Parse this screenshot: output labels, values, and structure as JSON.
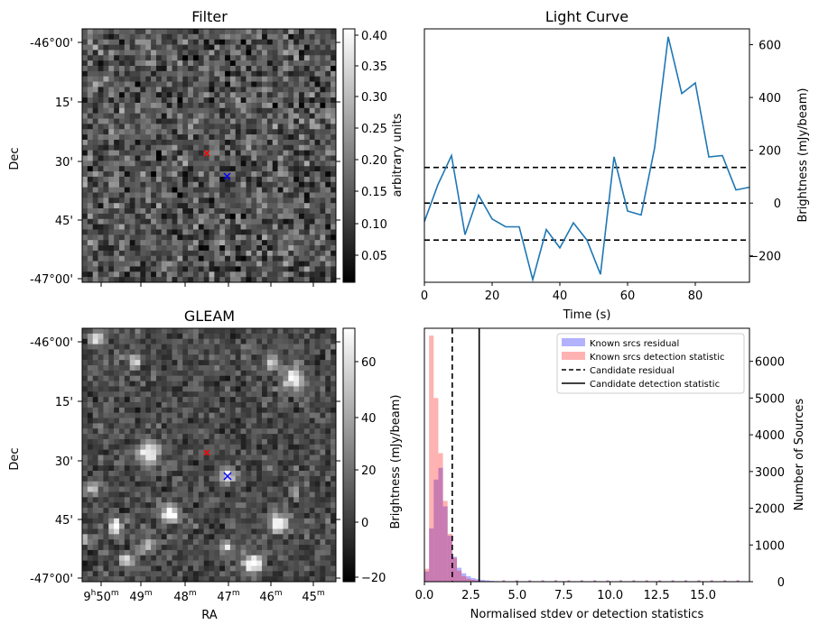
{
  "panels": {
    "filter": {
      "title": "Filter",
      "ylabel": "Dec",
      "yticks": [
        "-46°00'",
        "15'",
        "30'",
        "45'",
        "-47°00'"
      ],
      "colorbar": {
        "label": "arbitrary units",
        "ticks": [
          "0.40",
          "0.35",
          "0.30",
          "0.25",
          "0.20",
          "0.15",
          "0.10",
          "0.05"
        ]
      },
      "markers": {
        "red": "#ff0000",
        "blue": "#0000ff"
      }
    },
    "gleam": {
      "title": "GLEAM",
      "ylabel": "Dec",
      "xlabel": "RA",
      "yticks": [
        "-46°00'",
        "15'",
        "30'",
        "45'",
        "-47°00'"
      ],
      "xticks": [
        "9h50m",
        "49m",
        "48m",
        "47m",
        "46m",
        "45m"
      ],
      "colorbar": {
        "label": "Brightness (mJy/beam)",
        "ticks": [
          "60",
          "40",
          "20",
          "0",
          "−20"
        ]
      }
    }
  },
  "chart_data": [
    {
      "type": "line",
      "title": "Light Curve",
      "xlabel": "Time (s)",
      "ylabel": "Brightness (mJy/beam)",
      "xlim": [
        0,
        96
      ],
      "ylim": [
        -300,
        660
      ],
      "xticks": [
        0,
        20,
        40,
        60,
        80
      ],
      "yticks": [
        -200,
        0,
        200,
        400,
        600
      ],
      "color": "#1f77b4",
      "x": [
        0,
        4,
        8,
        12,
        16,
        20,
        24,
        28,
        32,
        36,
        40,
        44,
        48,
        52,
        56,
        60,
        64,
        68,
        72,
        76,
        80,
        84,
        88,
        92,
        96
      ],
      "y": [
        -70,
        70,
        180,
        -120,
        30,
        -60,
        -90,
        -90,
        -290,
        -100,
        -170,
        -75,
        -140,
        -270,
        175,
        -30,
        -45,
        210,
        630,
        415,
        455,
        175,
        180,
        50,
        60
      ],
      "hlines": [
        135,
        0,
        -140
      ]
    },
    {
      "type": "histogram",
      "xlabel": "Normalised stdev or detection statistics",
      "ylabel": "Number of Sources",
      "left_label": "Brightness (mJy/beam)",
      "xlim": [
        0,
        17.5
      ],
      "ylim": [
        0,
        6900
      ],
      "xticks": [
        "0.0",
        "2.5",
        "5.0",
        "7.5",
        "10.0",
        "12.5",
        "15.0"
      ],
      "yticks": [
        0,
        1000,
        2000,
        3000,
        4000,
        5000,
        6000
      ],
      "bin_width": 0.25,
      "series": [
        {
          "name": "Known srcs residual",
          "color": "#0000ff",
          "counts": [
            280,
            1450,
            2780,
            3100,
            2050,
            1250,
            680,
            380,
            230,
            150,
            100,
            70,
            50,
            35,
            25,
            15
          ]
        },
        {
          "name": "Known srcs detection statistic",
          "color": "#ff0000",
          "counts": [
            350,
            6700,
            5000,
            3500,
            2200,
            1300,
            650,
            300,
            150,
            80,
            50,
            30,
            20,
            15,
            10,
            5
          ]
        }
      ],
      "vlines": [
        {
          "name": "Candidate residual",
          "x": 1.5,
          "style": "dashed"
        },
        {
          "name": "Candidate detection statistic",
          "x": 2.95,
          "style": "solid"
        }
      ]
    }
  ]
}
